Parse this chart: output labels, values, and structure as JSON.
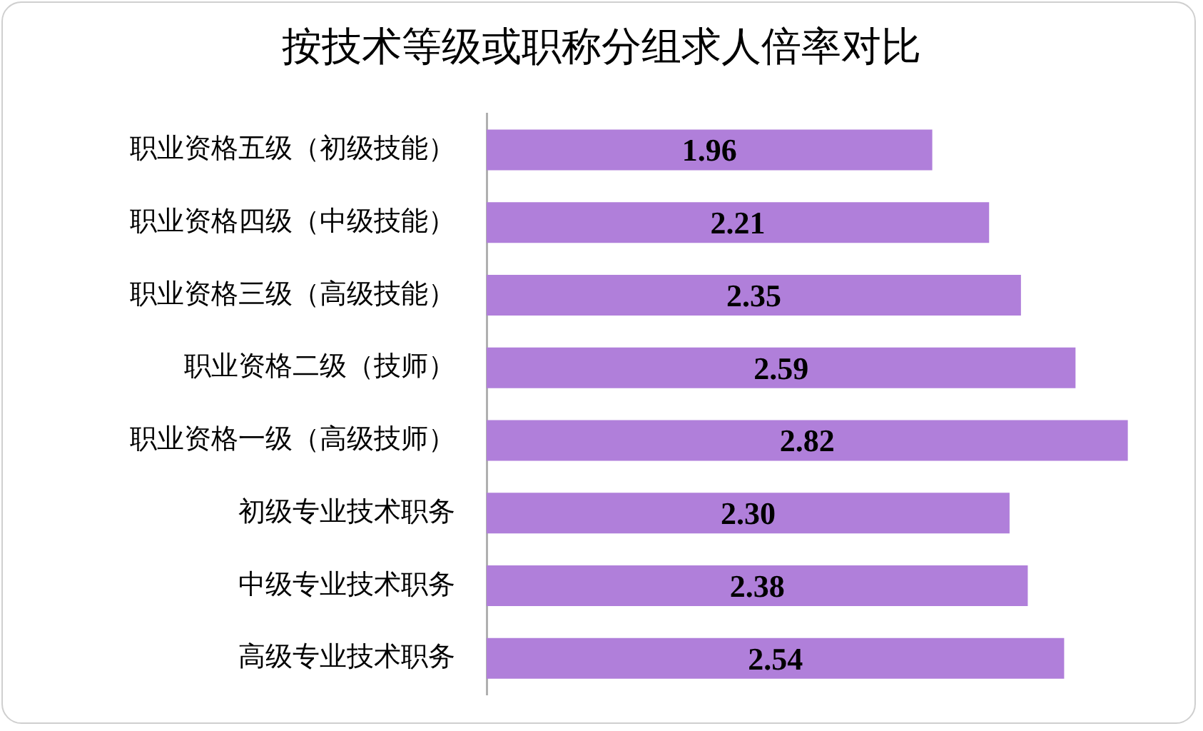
{
  "chart_data": {
    "type": "bar",
    "orientation": "horizontal",
    "title": "按技术等级或职称分组求人倍率对比",
    "categories": [
      "职业资格五级（初级技能）",
      "职业资格四级（中级技能）",
      "职业资格三级（高级技能）",
      "职业资格二级（技师）",
      "职业资格一级（高级技师）",
      "初级专业技术职务",
      "中级专业技术职务",
      "高级专业技术职务"
    ],
    "values": [
      1.96,
      2.21,
      2.35,
      2.59,
      2.82,
      2.3,
      2.38,
      2.54
    ],
    "value_labels": [
      "1.96",
      "2.21",
      "2.35",
      "2.59",
      "2.82",
      "2.30",
      "2.38",
      "2.54"
    ],
    "color": "#b07fda"
  }
}
